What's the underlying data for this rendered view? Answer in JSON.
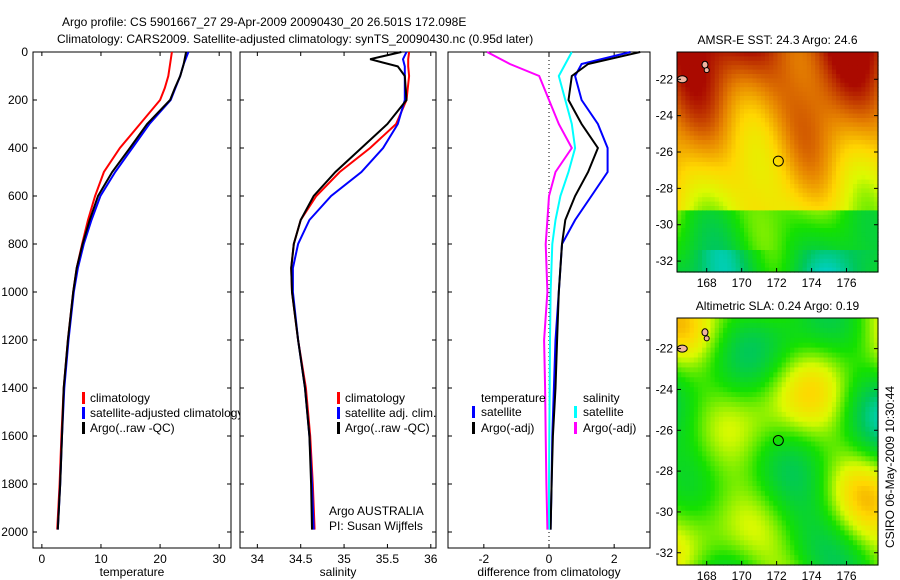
{
  "title_line1": "Argo profile: CS 5901667_27 29-Apr-2009 20090430_20 26.501S 172.098E",
  "title_line2": "Climatology: CARS2009. Satellite-adjusted climatology: synTS_20090430.nc (0.95d later)",
  "footer": "CSIRO 06-May-2009 10:30:44",
  "chart_data": [
    {
      "type": "line",
      "id": "temperature",
      "xlabel": "temperature",
      "ylabel": "",
      "xlim": [
        -1.5,
        32
      ],
      "ylim": [
        2060,
        0
      ],
      "xticks": [
        0,
        10,
        20,
        30
      ],
      "yticks": [
        0,
        200,
        400,
        600,
        800,
        1000,
        1200,
        1400,
        1600,
        1800,
        2000
      ],
      "depth": [
        0,
        50,
        100,
        150,
        200,
        300,
        400,
        500,
        600,
        700,
        800,
        900,
        1000,
        1200,
        1400,
        1600,
        1800,
        1990
      ],
      "series": [
        {
          "name": "climatology",
          "color": "#ff0000",
          "values": [
            22.0,
            21.7,
            21.4,
            20.8,
            20.0,
            16.6,
            13.2,
            10.5,
            9.0,
            7.8,
            6.8,
            5.9,
            5.3,
            4.4,
            3.7,
            3.3,
            3.0,
            2.6
          ]
        },
        {
          "name": "satellite-adjusted climatology",
          "color": "#0000ff",
          "values": [
            24.8,
            24.0,
            23.4,
            22.6,
            21.8,
            18.2,
            15.3,
            12.4,
            9.9,
            8.4,
            7.1,
            6.1,
            5.4,
            4.5,
            3.8,
            3.4,
            3.1,
            2.7
          ]
        },
        {
          "name": "Argo(..raw -QC)",
          "color": "#000000",
          "values": [
            24.4,
            24.0,
            23.4,
            22.5,
            21.7,
            17.8,
            14.9,
            11.9,
            9.5,
            8.1,
            6.9,
            5.9,
            5.3,
            4.4,
            3.7,
            3.4,
            3.1,
            2.7
          ]
        }
      ],
      "legend": [
        "climatology",
        "satellite-adjusted climatology",
        "Argo(..raw -QC)"
      ],
      "legend_position": "lower-right"
    },
    {
      "type": "line",
      "id": "salinity",
      "xlabel": "salinity",
      "xlim": [
        33.8,
        36.06
      ],
      "ylim": [
        2060,
        0
      ],
      "xticks": [
        34,
        34.5,
        35,
        35.5,
        36
      ],
      "depth": [
        0,
        30,
        60,
        100,
        200,
        300,
        400,
        500,
        600,
        700,
        800,
        900,
        1000,
        1200,
        1400,
        1600,
        1800,
        1990
      ],
      "series": [
        {
          "name": "climatology",
          "color": "#ff0000",
          "values": [
            35.75,
            35.74,
            35.74,
            35.75,
            35.72,
            35.6,
            35.3,
            34.95,
            34.68,
            34.5,
            34.42,
            34.39,
            34.4,
            34.47,
            34.56,
            34.61,
            34.64,
            34.66
          ]
        },
        {
          "name": "satellite adj. clim.",
          "color": "#0000ff",
          "values": [
            35.72,
            35.68,
            35.7,
            35.7,
            35.7,
            35.62,
            35.45,
            35.2,
            34.85,
            34.6,
            34.47,
            34.41,
            34.41,
            34.47,
            34.55,
            34.6,
            34.63,
            34.65
          ]
        },
        {
          "name": "Argo(..raw -QC)",
          "color": "#000000",
          "values": [
            35.66,
            35.3,
            35.62,
            35.7,
            35.72,
            35.5,
            35.2,
            34.9,
            34.65,
            34.5,
            34.42,
            34.39,
            34.4,
            34.47,
            34.55,
            34.6,
            34.62,
            34.63
          ]
        }
      ],
      "legend": [
        "climatology",
        "satellite adj. clim.",
        "Argo(..raw -QC)"
      ],
      "annotation": [
        "Argo AUSTRALIA",
        "PI: Susan Wijffels"
      ]
    },
    {
      "type": "line",
      "id": "difference",
      "xlabel": "difference from climatology",
      "xlim": [
        -3.1,
        3.1
      ],
      "ylim": [
        2060,
        0
      ],
      "xticks": [
        -2,
        0,
        2
      ],
      "depth": [
        0,
        50,
        100,
        200,
        300,
        400,
        500,
        600,
        700,
        800,
        1000,
        1200,
        1400,
        1600,
        1800,
        1990
      ],
      "series": [
        {
          "name": "temperature satellite",
          "color": "#0000ff",
          "values": [
            2.5,
            1.0,
            0.8,
            1.0,
            1.5,
            1.8,
            1.8,
            1.3,
            0.8,
            0.4,
            0.3,
            0.2,
            0.15,
            0.1,
            0.08,
            0.05
          ]
        },
        {
          "name": "temperature Argo(-adj)",
          "color": "#000000",
          "values": [
            2.8,
            1.2,
            0.7,
            0.6,
            1.0,
            1.5,
            1.2,
            0.8,
            0.5,
            0.4,
            0.3,
            0.25,
            0.2,
            0.12,
            0.08,
            0.05
          ]
        },
        {
          "name": "salinity satellite",
          "color": "#00ffff",
          "values": [
            0.7,
            0.5,
            0.3,
            0.5,
            0.7,
            0.8,
            0.6,
            0.35,
            0.2,
            0.1,
            0.05,
            0.03,
            0.02,
            0.01,
            0.0,
            0.0
          ]
        },
        {
          "name": "salinity Argo(-adj)",
          "color": "#ff00ff",
          "values": [
            -1.9,
            -1.2,
            -0.3,
            0.0,
            0.3,
            0.7,
            0.2,
            0.0,
            -0.05,
            -0.1,
            -0.05,
            -0.15,
            -0.12,
            -0.1,
            -0.08,
            -0.05
          ]
        }
      ],
      "legend_headers": [
        "temperature",
        "salinity"
      ],
      "legend": [
        "satellite",
        "Argo(-adj)",
        "satellite",
        "Argo(-adj)"
      ]
    },
    {
      "type": "heatmap",
      "id": "sst-map",
      "title": "AMSR-E SST: 24.3 Argo: 24.6",
      "xlim": [
        166.3,
        177.8
      ],
      "ylim": [
        -32.6,
        -20.5
      ],
      "xticks": [
        168,
        170,
        172,
        174,
        176
      ],
      "yticks": [
        -22,
        -24,
        -26,
        -28,
        -30,
        -32
      ],
      "marker": {
        "lon": 172.098,
        "lat": -26.501
      }
    },
    {
      "type": "heatmap",
      "id": "sla-map",
      "title": "Altimetric SLA: 0.24 Argo: 0.19",
      "xlim": [
        166.3,
        177.8
      ],
      "ylim": [
        -32.6,
        -20.5
      ],
      "xticks": [
        168,
        170,
        172,
        174,
        176
      ],
      "yticks": [
        -22,
        -24,
        -26,
        -28,
        -30,
        -32
      ],
      "marker": {
        "lon": 172.098,
        "lat": -26.501
      }
    }
  ]
}
